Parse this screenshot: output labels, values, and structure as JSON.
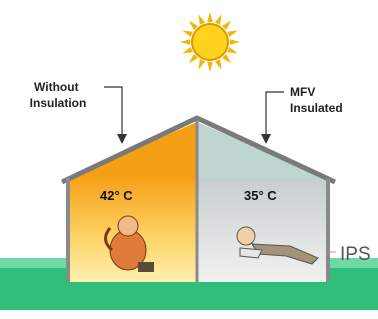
{
  "labels": {
    "left": [
      "Without",
      "Insulation"
    ],
    "right": [
      "MFV",
      "Insulated"
    ]
  },
  "rooms": {
    "left_temp": "42° C",
    "right_temp": "35° C"
  },
  "logo": "IPS"
}
